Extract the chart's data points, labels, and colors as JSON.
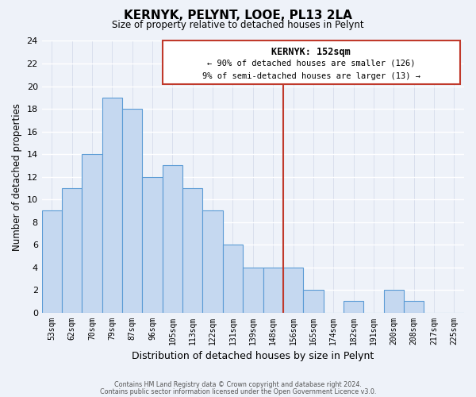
{
  "title": "KERNYK, PELYNT, LOOE, PL13 2LA",
  "subtitle": "Size of property relative to detached houses in Pelynt",
  "xlabel": "Distribution of detached houses by size in Pelynt",
  "ylabel": "Number of detached properties",
  "bin_labels": [
    "53sqm",
    "62sqm",
    "70sqm",
    "79sqm",
    "87sqm",
    "96sqm",
    "105sqm",
    "113sqm",
    "122sqm",
    "131sqm",
    "139sqm",
    "148sqm",
    "156sqm",
    "165sqm",
    "174sqm",
    "182sqm",
    "191sqm",
    "200sqm",
    "208sqm",
    "217sqm",
    "225sqm"
  ],
  "bar_values": [
    9,
    11,
    14,
    19,
    18,
    12,
    13,
    11,
    9,
    6,
    4,
    4,
    4,
    2,
    0,
    1,
    0,
    2,
    1,
    0,
    0
  ],
  "bar_color": "#c5d8f0",
  "bar_edge_color": "#5b9bd5",
  "ylim": [
    0,
    24
  ],
  "yticks": [
    0,
    2,
    4,
    6,
    8,
    10,
    12,
    14,
    16,
    18,
    20,
    22,
    24
  ],
  "vline_color": "#c0392b",
  "annotation_title": "KERNYK: 152sqm",
  "annotation_line1": "← 90% of detached houses are smaller (126)",
  "annotation_line2": "9% of semi-detached houses are larger (13) →",
  "footnote1": "Contains HM Land Registry data © Crown copyright and database right 2024.",
  "footnote2": "Contains public sector information licensed under the Open Government Licence v3.0.",
  "background_color": "#eef2f9",
  "grid_color": "#d0d8e8"
}
